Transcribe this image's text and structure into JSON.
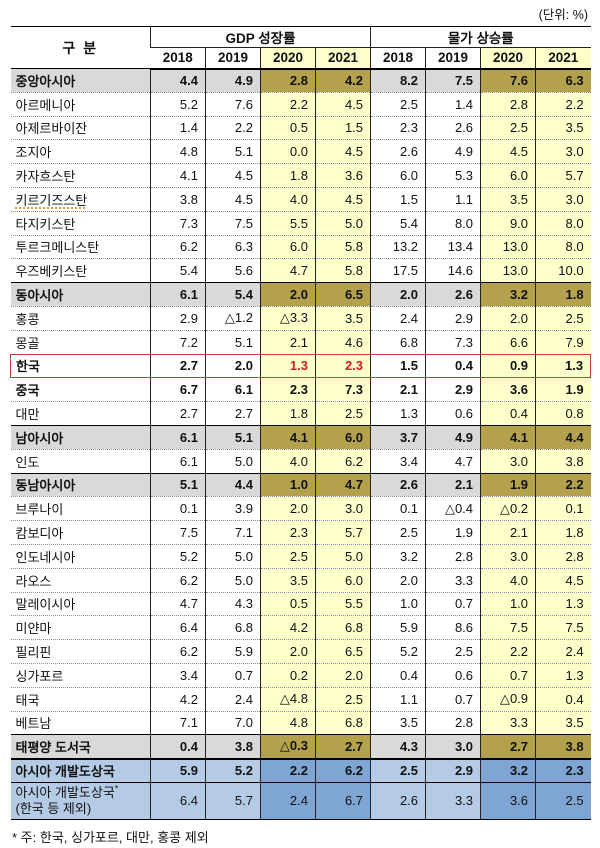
{
  "unit_label": "(단위: %)",
  "footnote": "* 주: 한국, 싱가포르, 대만, 홍콩 제외",
  "colors": {
    "highlight_col_yellow": "#ffffcc",
    "region_gray": "#d9d9d9",
    "region_khaki": "#b3a14e",
    "total_blue_light": "#b5cbe5",
    "total_blue_dark": "#7fa5d2",
    "korea_box_red": "#bf4040",
    "korea_value_red": "#cc1f1f",
    "spell_underline_orange": "#e8973c"
  },
  "table": {
    "header": {
      "label_col": "구 분",
      "group_gdp": "GDP 성장률",
      "group_cpi": "물가 상승률"
    },
    "years": [
      "2018",
      "2019",
      "2020",
      "2021"
    ],
    "rows": [
      {
        "type": "region",
        "label": "중앙아시아",
        "gdp": [
          "4.4",
          "4.9",
          "2.8",
          "4.2"
        ],
        "cpi": [
          "8.2",
          "7.5",
          "7.6",
          "6.3"
        ]
      },
      {
        "type": "country",
        "label": "아르메니아",
        "gdp": [
          "5.2",
          "7.6",
          "2.2",
          "4.5"
        ],
        "cpi": [
          "2.5",
          "1.4",
          "2.8",
          "2.2"
        ]
      },
      {
        "type": "country",
        "label": "아제르바이잔",
        "gdp": [
          "1.4",
          "2.2",
          "0.5",
          "1.5"
        ],
        "cpi": [
          "2.3",
          "2.6",
          "2.5",
          "3.5"
        ]
      },
      {
        "type": "country",
        "label": "조지아",
        "gdp": [
          "4.8",
          "5.1",
          "0.0",
          "4.5"
        ],
        "cpi": [
          "2.6",
          "4.9",
          "4.5",
          "3.0"
        ]
      },
      {
        "type": "country",
        "label": "카자흐스탄",
        "gdp": [
          "4.1",
          "4.5",
          "1.8",
          "3.6"
        ],
        "cpi": [
          "6.0",
          "5.3",
          "6.0",
          "5.7"
        ]
      },
      {
        "type": "country",
        "label": "키르기즈스탄",
        "spell_underline": true,
        "gdp": [
          "3.8",
          "4.5",
          "4.0",
          "4.5"
        ],
        "cpi": [
          "1.5",
          "1.1",
          "3.5",
          "3.0"
        ]
      },
      {
        "type": "country",
        "label": "타지키스탄",
        "gdp": [
          "7.3",
          "7.5",
          "5.5",
          "5.0"
        ],
        "cpi": [
          "5.4",
          "8.0",
          "9.0",
          "8.0"
        ]
      },
      {
        "type": "country",
        "label": "투르크메니스탄",
        "gdp": [
          "6.2",
          "6.3",
          "6.0",
          "5.8"
        ],
        "cpi": [
          "13.2",
          "13.4",
          "13.0",
          "8.0"
        ]
      },
      {
        "type": "country",
        "label": "우즈베키스탄",
        "gdp": [
          "5.4",
          "5.6",
          "4.7",
          "5.8"
        ],
        "cpi": [
          "17.5",
          "14.6",
          "13.0",
          "10.0"
        ]
      },
      {
        "type": "region",
        "label": "동아시아",
        "gdp": [
          "6.1",
          "5.4",
          "2.0",
          "6.5"
        ],
        "cpi": [
          "2.0",
          "2.6",
          "3.2",
          "1.8"
        ]
      },
      {
        "type": "country",
        "label": "홍콩",
        "gdp": [
          "2.9",
          "△1.2",
          "△3.3",
          "3.5"
        ],
        "cpi": [
          "2.4",
          "2.9",
          "2.0",
          "2.5"
        ]
      },
      {
        "type": "country",
        "label": "몽골",
        "gdp": [
          "7.2",
          "5.1",
          "2.1",
          "4.6"
        ],
        "cpi": [
          "6.8",
          "7.3",
          "6.6",
          "7.9"
        ]
      },
      {
        "type": "korea",
        "label": "한국",
        "gdp": [
          "2.7",
          "2.0",
          "1.3",
          "2.3"
        ],
        "cpi": [
          "1.5",
          "0.4",
          "0.9",
          "1.3"
        ],
        "red_gdp_indices": [
          2,
          3
        ]
      },
      {
        "type": "country-bold",
        "label": "중국",
        "gdp": [
          "6.7",
          "6.1",
          "2.3",
          "7.3"
        ],
        "cpi": [
          "2.1",
          "2.9",
          "3.6",
          "1.9"
        ]
      },
      {
        "type": "country",
        "label": "대만",
        "gdp": [
          "2.7",
          "2.7",
          "1.8",
          "2.5"
        ],
        "cpi": [
          "1.3",
          "0.6",
          "0.4",
          "0.8"
        ]
      },
      {
        "type": "region",
        "label": "남아시아",
        "gdp": [
          "6.1",
          "5.1",
          "4.1",
          "6.0"
        ],
        "cpi": [
          "3.7",
          "4.9",
          "4.1",
          "4.4"
        ]
      },
      {
        "type": "country",
        "label": "인도",
        "gdp": [
          "6.1",
          "5.0",
          "4.0",
          "6.2"
        ],
        "cpi": [
          "3.4",
          "4.7",
          "3.0",
          "3.8"
        ]
      },
      {
        "type": "region",
        "label": "동남아시아",
        "gdp": [
          "5.1",
          "4.4",
          "1.0",
          "4.7"
        ],
        "cpi": [
          "2.6",
          "2.1",
          "1.9",
          "2.2"
        ]
      },
      {
        "type": "country",
        "label": "브루나이",
        "gdp": [
          "0.1",
          "3.9",
          "2.0",
          "3.0"
        ],
        "cpi": [
          "0.1",
          "△0.4",
          "△0.2",
          "0.1"
        ]
      },
      {
        "type": "country",
        "label": "캄보디아",
        "gdp": [
          "7.5",
          "7.1",
          "2.3",
          "5.7"
        ],
        "cpi": [
          "2.5",
          "1.9",
          "2.1",
          "1.8"
        ]
      },
      {
        "type": "country",
        "label": "인도네시아",
        "gdp": [
          "5.2",
          "5.0",
          "2.5",
          "5.0"
        ],
        "cpi": [
          "3.2",
          "2.8",
          "3.0",
          "2.8"
        ]
      },
      {
        "type": "country",
        "label": "라오스",
        "gdp": [
          "6.2",
          "5.0",
          "3.5",
          "6.0"
        ],
        "cpi": [
          "2.0",
          "3.3",
          "4.0",
          "4.5"
        ]
      },
      {
        "type": "country",
        "label": "말레이시아",
        "gdp": [
          "4.7",
          "4.3",
          "0.5",
          "5.5"
        ],
        "cpi": [
          "1.0",
          "0.7",
          "1.0",
          "1.3"
        ]
      },
      {
        "type": "country",
        "label": "미얀마",
        "gdp": [
          "6.4",
          "6.8",
          "4.2",
          "6.8"
        ],
        "cpi": [
          "5.9",
          "8.6",
          "7.5",
          "7.5"
        ]
      },
      {
        "type": "country",
        "label": "필리핀",
        "gdp": [
          "6.2",
          "5.9",
          "2.0",
          "6.5"
        ],
        "cpi": [
          "5.2",
          "2.5",
          "2.2",
          "2.4"
        ]
      },
      {
        "type": "country",
        "label": "싱가포르",
        "gdp": [
          "3.4",
          "0.7",
          "0.2",
          "2.0"
        ],
        "cpi": [
          "0.4",
          "0.6",
          "0.7",
          "1.3"
        ]
      },
      {
        "type": "country",
        "label": "태국",
        "gdp": [
          "4.2",
          "2.4",
          "△4.8",
          "2.5"
        ],
        "cpi": [
          "1.1",
          "0.7",
          "△0.9",
          "0.4"
        ]
      },
      {
        "type": "country",
        "label": "베트남",
        "gdp": [
          "7.1",
          "7.0",
          "4.8",
          "6.8"
        ],
        "cpi": [
          "3.5",
          "2.8",
          "3.3",
          "3.5"
        ]
      },
      {
        "type": "region",
        "label": "태평양 도서국",
        "gdp": [
          "0.4",
          "3.8",
          "△0.3",
          "2.7"
        ],
        "cpi": [
          "4.3",
          "3.0",
          "2.7",
          "3.8"
        ]
      },
      {
        "type": "total",
        "label": "아시아 개발도상국",
        "gdp": [
          "5.9",
          "5.2",
          "2.2",
          "6.2"
        ],
        "cpi": [
          "2.5",
          "2.9",
          "3.2",
          "2.3"
        ]
      },
      {
        "type": "total2",
        "label": "아시아 개발도상국",
        "label_sup": "*",
        "label_line2": "(한국 등 제외)",
        "gdp": [
          "6.4",
          "5.7",
          "2.4",
          "6.7"
        ],
        "cpi": [
          "2.6",
          "3.3",
          "3.6",
          "2.5"
        ]
      }
    ]
  }
}
